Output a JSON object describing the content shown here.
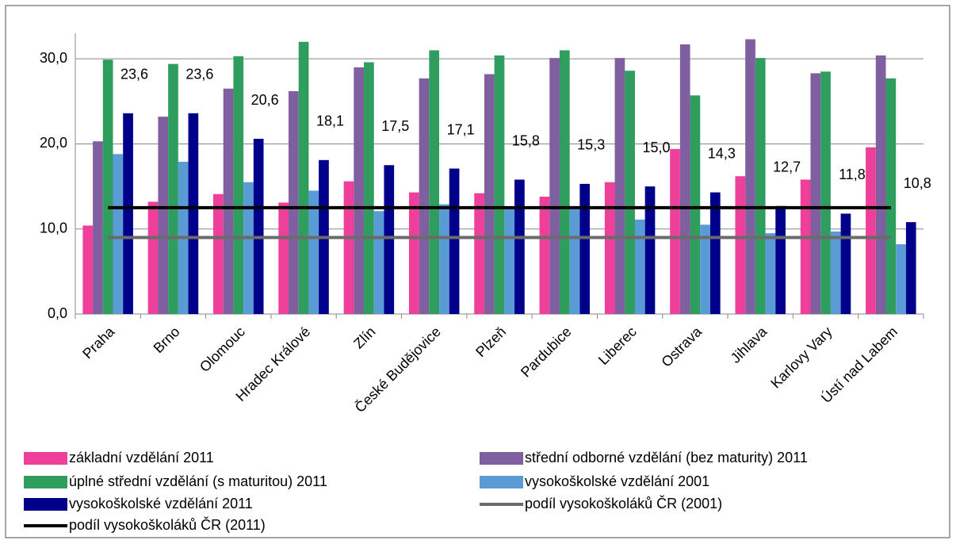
{
  "chart_data": {
    "type": "bar",
    "categories": [
      "Praha",
      "Brno",
      "Olomouc",
      "Hradec Králové",
      "Zlín",
      "České Budějovice",
      "Plzeň",
      "Pardubice",
      "Liberec",
      "Ostrava",
      "Jihlava",
      "Karlovy Vary",
      "Ústí nad Labem"
    ],
    "series": [
      {
        "name": "základní vzdělání 2011",
        "color": "#ee3f9b",
        "values": [
          10.4,
          13.2,
          14.1,
          13.1,
          15.6,
          14.3,
          14.2,
          13.8,
          15.5,
          19.4,
          16.2,
          15.8,
          19.6
        ]
      },
      {
        "name": "střední odborné vzdělání (bez maturity) 2011",
        "color": "#7f5fa0",
        "values": [
          20.3,
          23.2,
          26.5,
          26.2,
          29.0,
          27.7,
          28.2,
          30.1,
          30.1,
          31.7,
          32.3,
          28.3,
          30.4
        ]
      },
      {
        "name": "úplné střední vzdělání (s maturitou) 2011",
        "color": "#2e9d5e",
        "values": [
          29.9,
          29.4,
          30.3,
          32.0,
          29.6,
          31.0,
          30.4,
          31.0,
          28.6,
          25.7,
          30.1,
          28.5,
          27.7
        ]
      },
      {
        "name": "vysokoškolské vzdělání 2001",
        "color": "#5b9bd5",
        "values": [
          18.8,
          17.9,
          15.5,
          14.5,
          12.1,
          12.9,
          12.5,
          12.3,
          11.1,
          10.5,
          9.5,
          9.7,
          8.2
        ]
      },
      {
        "name": "vysokoškolské vzdělání 2011",
        "color": "#00008b",
        "values": [
          23.6,
          23.6,
          20.6,
          18.1,
          17.5,
          17.1,
          15.8,
          15.3,
          15.0,
          14.3,
          12.7,
          11.8,
          10.8
        ],
        "value_labels": [
          "23,6",
          "23,6",
          "20,6",
          "18,1",
          "17,5",
          "17,1",
          "15,8",
          "15,3",
          "15,0",
          "14,3",
          "12,7",
          "11,8",
          "10,8"
        ]
      },
      {
        "name": "podíl vysokoškoláků ČR (2001)",
        "type": "line",
        "color": "#6b6b6b",
        "values": [
          9.0,
          9.0,
          9.0,
          9.0,
          9.0,
          9.0,
          9.0,
          9.0,
          9.0,
          9.0,
          9.0,
          9.0,
          9.0
        ]
      },
      {
        "name": "podíl vysokoškoláků ČR (2011)",
        "type": "line",
        "color": "#000000",
        "values": [
          12.5,
          12.5,
          12.5,
          12.5,
          12.5,
          12.5,
          12.5,
          12.5,
          12.5,
          12.5,
          12.5,
          12.5,
          12.5
        ]
      }
    ],
    "ylim": [
      0,
      33
    ],
    "yticks": [
      {
        "value": 0,
        "label": "0,0"
      },
      {
        "value": 10,
        "label": "10,0"
      },
      {
        "value": 20,
        "label": "20,0"
      },
      {
        "value": 30,
        "label": "30,0"
      }
    ],
    "grid": true
  }
}
